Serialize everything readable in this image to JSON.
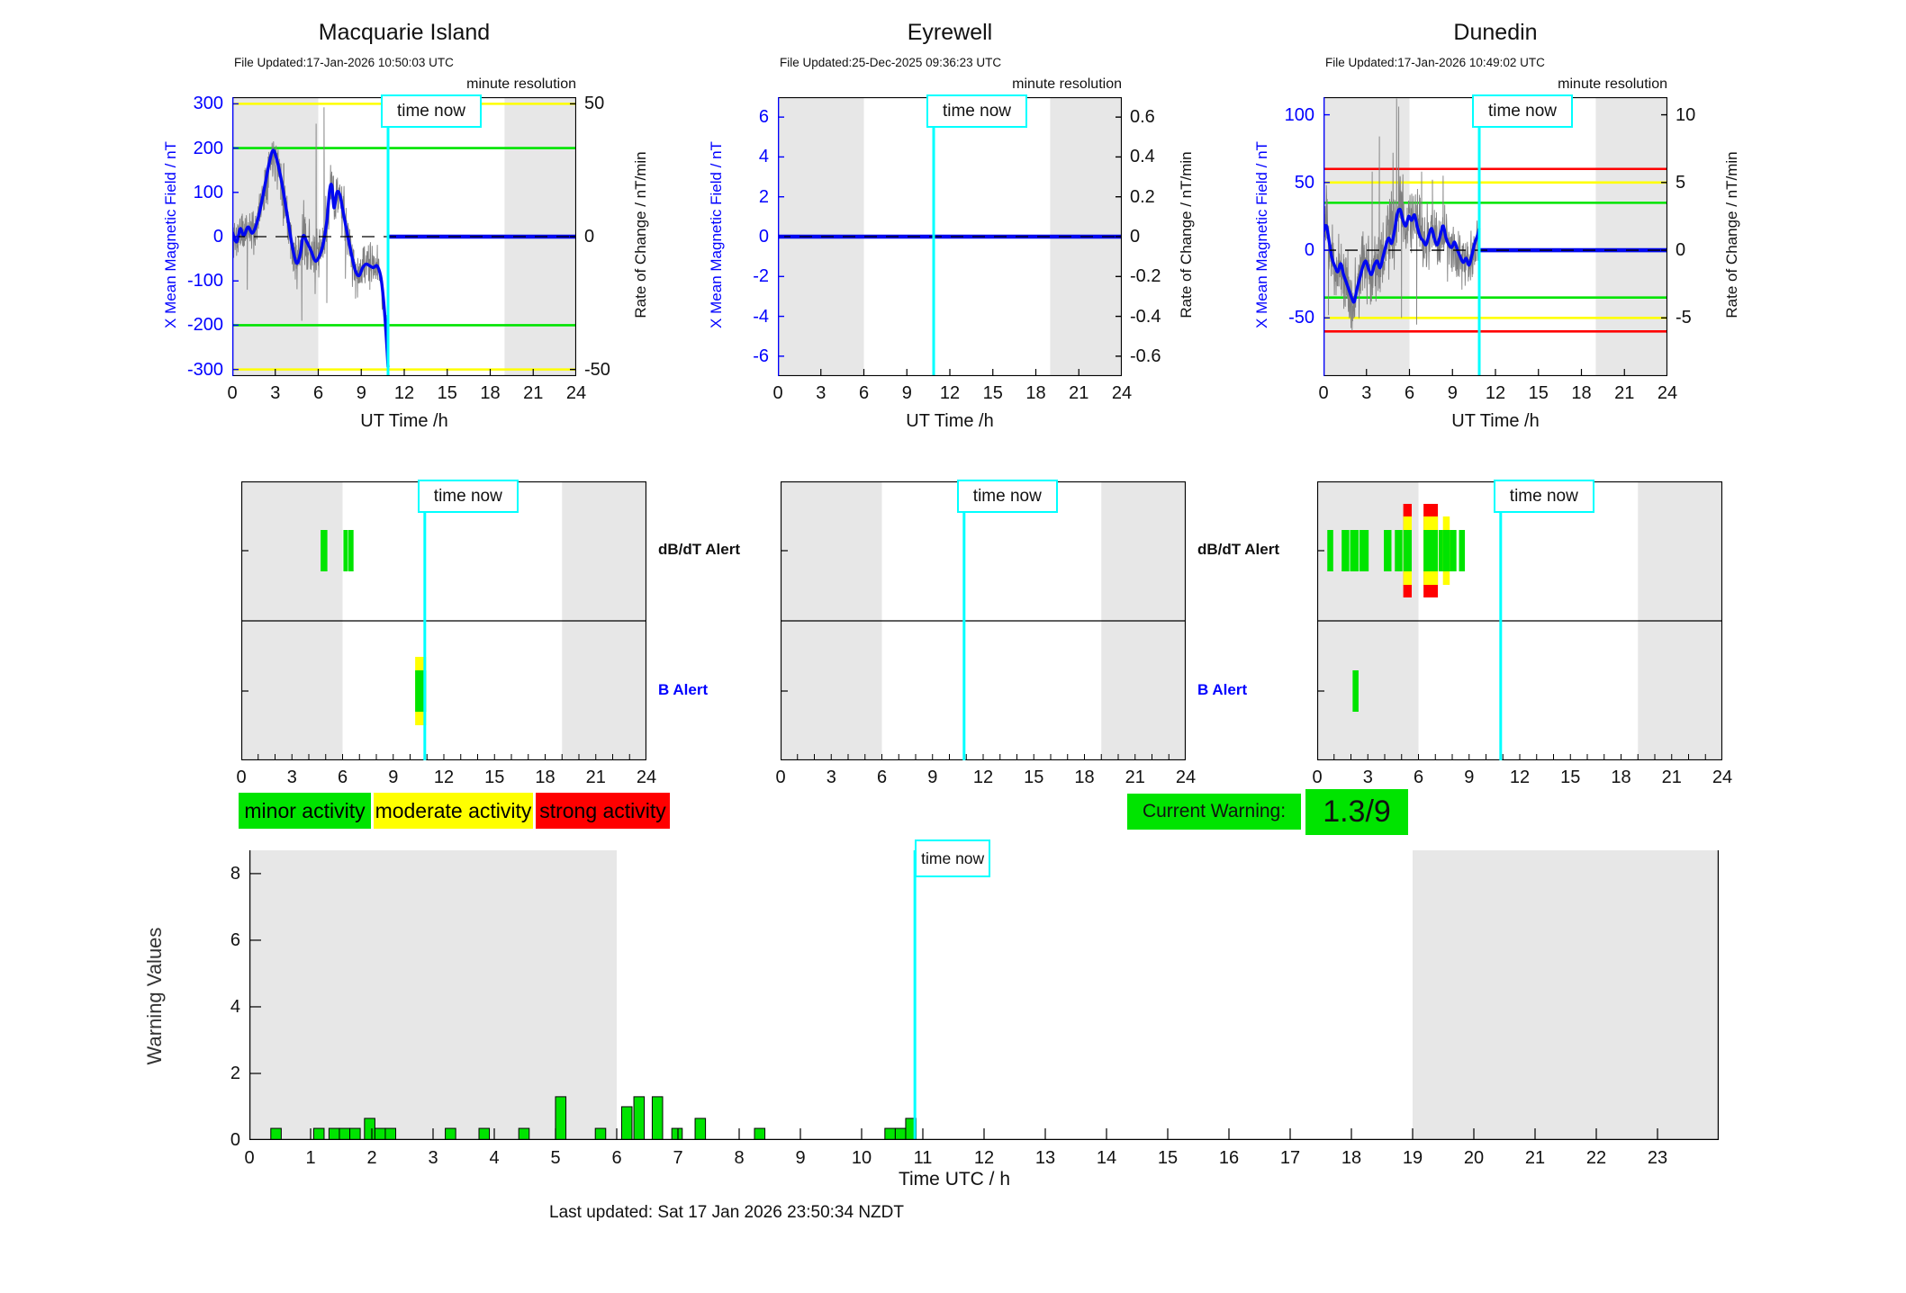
{
  "page": {
    "time_now": "time now",
    "minute_resolution": "minute resolution",
    "last_updated": "Last updated: Sat 17 Jan 2026 23:50:34 NZDT",
    "alert_rows": {
      "dbdt": "dB/dT Alert",
      "b": "B Alert"
    },
    "legend": [
      {
        "label": "minor activity",
        "color": "#00e400"
      },
      {
        "label": "moderate activity",
        "color": "#ffff00"
      },
      {
        "label": "strong activity",
        "color": "#ff0000"
      }
    ],
    "current_warning": {
      "label": "Current Warning:",
      "value": "1.3/9",
      "color": "#00e400"
    }
  },
  "colors": {
    "night": "#e7e7e7",
    "cyan": "#00ffff",
    "trace_blue": "#0008f0",
    "trace_gray": "#7f7f7f",
    "green": "#00e400",
    "yellow": "#ffff00",
    "red": "#ff0000",
    "axis_blue": "#0000ff"
  },
  "chart_data": [
    {
      "type": "line",
      "title": "Macquarie Island",
      "file_updated": "File Updated:17-Jan-2026 10:50:03 UTC",
      "xlabel": "UT Time /h",
      "xlim": [
        0,
        24
      ],
      "xticks": [
        0,
        3,
        6,
        9,
        12,
        15,
        18,
        21,
        24
      ],
      "night_bands": [
        [
          0,
          6
        ],
        [
          19,
          24
        ]
      ],
      "time_now_hour": 10.87,
      "left_axis": {
        "label": "X Mean Magnetic Field / nT",
        "lim": [
          -315,
          315
        ],
        "ticks": [
          300,
          200,
          100,
          0,
          -100,
          -200,
          -300
        ]
      },
      "right_axis": {
        "label": "Rate of Change / nT/min",
        "lim": [
          -52.5,
          52.5
        ],
        "ticks": [
          50,
          0,
          -50
        ]
      },
      "thresholds": [
        {
          "value": 300,
          "color": "yellow"
        },
        {
          "value": -300,
          "color": "yellow"
        },
        {
          "value": 200,
          "color": "green"
        },
        {
          "value": -200,
          "color": "green"
        }
      ],
      "blue_series": [
        [
          0,
          10
        ],
        [
          0.3,
          -12
        ],
        [
          0.55,
          18
        ],
        [
          0.8,
          2
        ],
        [
          1.1,
          22
        ],
        [
          1.4,
          8
        ],
        [
          1.7,
          30
        ],
        [
          2,
          70
        ],
        [
          2.3,
          120
        ],
        [
          2.6,
          170
        ],
        [
          2.85,
          195
        ],
        [
          3.1,
          175
        ],
        [
          3.35,
          140
        ],
        [
          3.6,
          95
        ],
        [
          3.9,
          35
        ],
        [
          4.2,
          -25
        ],
        [
          4.5,
          -60
        ],
        [
          4.75,
          -38
        ],
        [
          4.95,
          2
        ],
        [
          5.2,
          -12
        ],
        [
          5.5,
          -32
        ],
        [
          5.8,
          -55
        ],
        [
          6.1,
          -42
        ],
        [
          6.35,
          -15
        ],
        [
          6.6,
          35
        ],
        [
          6.8,
          105
        ],
        [
          6.95,
          115
        ],
        [
          7.1,
          65
        ],
        [
          7.3,
          100
        ],
        [
          7.5,
          95
        ],
        [
          7.7,
          62
        ],
        [
          7.9,
          28
        ],
        [
          8.1,
          -5
        ],
        [
          8.35,
          -45
        ],
        [
          8.6,
          -78
        ],
        [
          8.85,
          -88
        ],
        [
          9.1,
          -70
        ],
        [
          9.35,
          -62
        ],
        [
          9.6,
          -66
        ],
        [
          9.85,
          -70
        ],
        [
          10.1,
          -66
        ],
        [
          10.35,
          -88
        ],
        [
          10.5,
          -125
        ],
        [
          10.65,
          -180
        ],
        [
          10.78,
          -245
        ],
        [
          10.87,
          -295
        ]
      ],
      "flat_segment": {
        "from": 10.95,
        "to": 24,
        "value": 0
      },
      "noise": {
        "seed": 11,
        "end": 10.87,
        "amp": [
          [
            0,
            55
          ],
          [
            2,
            46
          ],
          [
            4,
            62
          ],
          [
            7,
            55
          ],
          [
            9,
            45
          ],
          [
            10.87,
            48
          ]
        ],
        "spikes": [
          [
            1.05,
            -120
          ],
          [
            3.6,
            165
          ],
          [
            4.85,
            -190
          ],
          [
            5.85,
            255
          ],
          [
            6.4,
            292
          ],
          [
            6.6,
            -150
          ],
          [
            7.9,
            -95
          ],
          [
            8.6,
            -140
          ],
          [
            9.6,
            -120
          ]
        ]
      },
      "alerts": {
        "dbdt": [
          [
            4.7,
            5.1,
            "g"
          ],
          [
            6.05,
            6.3,
            "g"
          ],
          [
            6.33,
            6.65,
            "g"
          ]
        ],
        "b": [
          [
            10.3,
            10.95,
            "y"
          ]
        ]
      }
    },
    {
      "type": "line",
      "title": "Eyrewell",
      "file_updated": "File Updated:25-Dec-2025 09:36:23 UTC",
      "xlabel": "UT Time /h",
      "xlim": [
        0,
        24
      ],
      "xticks": [
        0,
        3,
        6,
        9,
        12,
        15,
        18,
        21,
        24
      ],
      "night_bands": [
        [
          0,
          6
        ],
        [
          19,
          24
        ]
      ],
      "time_now_hour": 10.87,
      "left_axis": {
        "label": "X Mean Magnetic Field / nT",
        "lim": [
          -7,
          7
        ],
        "ticks": [
          6,
          4,
          2,
          0,
          -2,
          -4,
          -6
        ]
      },
      "right_axis": {
        "label": "Rate of Change / nT/min",
        "lim": [
          -0.7,
          0.7
        ],
        "ticks": [
          0.6,
          0.4,
          0.2,
          0,
          -0.2,
          -0.4,
          -0.6
        ]
      },
      "thresholds": [],
      "blue_series": [],
      "flat_segment": {
        "from": 0,
        "to": 24,
        "value": 0
      },
      "noise": null,
      "alerts": {
        "dbdt": [],
        "b": []
      }
    },
    {
      "type": "line",
      "title": "Dunedin",
      "file_updated": "File Updated:17-Jan-2026 10:49:02 UTC",
      "xlabel": "UT Time /h",
      "xlim": [
        0,
        24
      ],
      "xticks": [
        0,
        3,
        6,
        9,
        12,
        15,
        18,
        21,
        24
      ],
      "night_bands": [
        [
          0,
          6
        ],
        [
          19,
          24
        ]
      ],
      "time_now_hour": 10.87,
      "left_axis": {
        "label": "X Mean Magnetic Field / nT",
        "lim": [
          -93,
          113
        ],
        "ticks": [
          100,
          50,
          0,
          -50
        ]
      },
      "right_axis": {
        "label": "Rate of Change / nT/min",
        "lim": [
          -9.3,
          11.3
        ],
        "ticks": [
          10,
          5,
          0,
          -5
        ]
      },
      "thresholds": [
        {
          "value": 60,
          "color": "red"
        },
        {
          "value": -60,
          "color": "red"
        },
        {
          "value": 50,
          "color": "yellow"
        },
        {
          "value": -50,
          "color": "yellow"
        },
        {
          "value": 35,
          "color": "green"
        },
        {
          "value": -35,
          "color": "green"
        }
      ],
      "blue_series": [
        [
          0,
          14
        ],
        [
          0.2,
          18
        ],
        [
          0.4,
          6
        ],
        [
          0.6,
          -6
        ],
        [
          0.8,
          -12
        ],
        [
          1,
          -16
        ],
        [
          1.2,
          -10
        ],
        [
          1.4,
          -18
        ],
        [
          1.6,
          -24
        ],
        [
          1.8,
          -30
        ],
        [
          2,
          -36
        ],
        [
          2.15,
          -38
        ],
        [
          2.35,
          -28
        ],
        [
          2.55,
          -20
        ],
        [
          2.75,
          -12
        ],
        [
          2.95,
          -8
        ],
        [
          3.15,
          -14
        ],
        [
          3.35,
          -18
        ],
        [
          3.55,
          -11
        ],
        [
          3.75,
          -8
        ],
        [
          3.95,
          -13
        ],
        [
          4.15,
          -5
        ],
        [
          4.35,
          3
        ],
        [
          4.55,
          9
        ],
        [
          4.75,
          5
        ],
        [
          4.95,
          14
        ],
        [
          5.15,
          27
        ],
        [
          5.35,
          30
        ],
        [
          5.55,
          22
        ],
        [
          5.75,
          18
        ],
        [
          5.95,
          25
        ],
        [
          6.15,
          22
        ],
        [
          6.35,
          26
        ],
        [
          6.55,
          17
        ],
        [
          6.75,
          10
        ],
        [
          6.95,
          7
        ],
        [
          7.15,
          4
        ],
        [
          7.35,
          11
        ],
        [
          7.55,
          16
        ],
        [
          7.75,
          8
        ],
        [
          7.95,
          4
        ],
        [
          8.15,
          11
        ],
        [
          8.35,
          18
        ],
        [
          8.55,
          9
        ],
        [
          8.75,
          4
        ],
        [
          8.95,
          2
        ],
        [
          9.15,
          6
        ],
        [
          9.35,
          0
        ],
        [
          9.55,
          -5
        ],
        [
          9.75,
          -9
        ],
        [
          9.95,
          -6
        ],
        [
          10.15,
          -11
        ],
        [
          10.35,
          -4
        ],
        [
          10.55,
          5
        ],
        [
          10.75,
          11
        ],
        [
          10.87,
          16
        ]
      ],
      "flat_segment": {
        "from": 10.95,
        "to": 24,
        "value": 0
      },
      "noise": {
        "seed": 23,
        "end": 10.87,
        "amp": [
          [
            0,
            26
          ],
          [
            3,
            24
          ],
          [
            4.5,
            30
          ],
          [
            6,
            26
          ],
          [
            8,
            22
          ],
          [
            10.87,
            20
          ]
        ],
        "spikes": [
          [
            0.35,
            -48
          ],
          [
            1.9,
            -50
          ],
          [
            3.4,
            58
          ],
          [
            3.9,
            84
          ],
          [
            4.85,
            72
          ],
          [
            5.1,
            112
          ],
          [
            5.25,
            106
          ],
          [
            5.45,
            -50
          ],
          [
            6.5,
            -55
          ],
          [
            6.85,
            58
          ],
          [
            7.6,
            52
          ],
          [
            8.35,
            55
          ]
        ]
      },
      "alerts": {
        "dbdt": [
          [
            0.6,
            0.95,
            "g"
          ],
          [
            1.45,
            1.9,
            "g"
          ],
          [
            1.95,
            2.45,
            "g"
          ],
          [
            2.5,
            3.05,
            "g"
          ],
          [
            3.95,
            4.4,
            "g"
          ],
          [
            4.6,
            5.05,
            "g"
          ],
          [
            5.1,
            5.6,
            "r"
          ],
          [
            6.3,
            7.15,
            "r"
          ],
          [
            7.2,
            8.25,
            "g"
          ],
          [
            7.45,
            7.85,
            "y"
          ],
          [
            8.4,
            8.75,
            "g"
          ]
        ],
        "b": [
          [
            2.1,
            2.45,
            "g"
          ]
        ]
      }
    },
    {
      "type": "bar",
      "title": "Warning Values",
      "ylabel": "Warning Values",
      "xlabel": "Time UTC / h",
      "xlim": [
        0,
        24
      ],
      "ylim": [
        0,
        8.7
      ],
      "yticks": [
        8,
        6,
        4,
        2,
        0
      ],
      "xticks": [
        0,
        1,
        2,
        3,
        4,
        5,
        6,
        7,
        8,
        9,
        10,
        11,
        12,
        13,
        14,
        15,
        16,
        17,
        18,
        19,
        20,
        21,
        22,
        23
      ],
      "night_bands": [
        [
          0,
          6
        ],
        [
          19,
          24
        ]
      ],
      "time_now_hour": 10.87,
      "bar_width": 0.17,
      "bars": [
        [
          0.35,
          0.35
        ],
        [
          1.05,
          0.35
        ],
        [
          1.3,
          0.35
        ],
        [
          1.47,
          0.35
        ],
        [
          1.64,
          0.35
        ],
        [
          1.88,
          0.65
        ],
        [
          2.05,
          0.35
        ],
        [
          2.22,
          0.35
        ],
        [
          3.2,
          0.35
        ],
        [
          3.75,
          0.35
        ],
        [
          4.4,
          0.35
        ],
        [
          5.0,
          1.3
        ],
        [
          5.65,
          0.35
        ],
        [
          6.08,
          1.0
        ],
        [
          6.28,
          1.3
        ],
        [
          6.58,
          1.3
        ],
        [
          6.9,
          0.35
        ],
        [
          7.28,
          0.65
        ],
        [
          8.25,
          0.35
        ],
        [
          10.38,
          0.35
        ],
        [
          10.55,
          0.35
        ],
        [
          10.72,
          0.65
        ]
      ]
    }
  ]
}
